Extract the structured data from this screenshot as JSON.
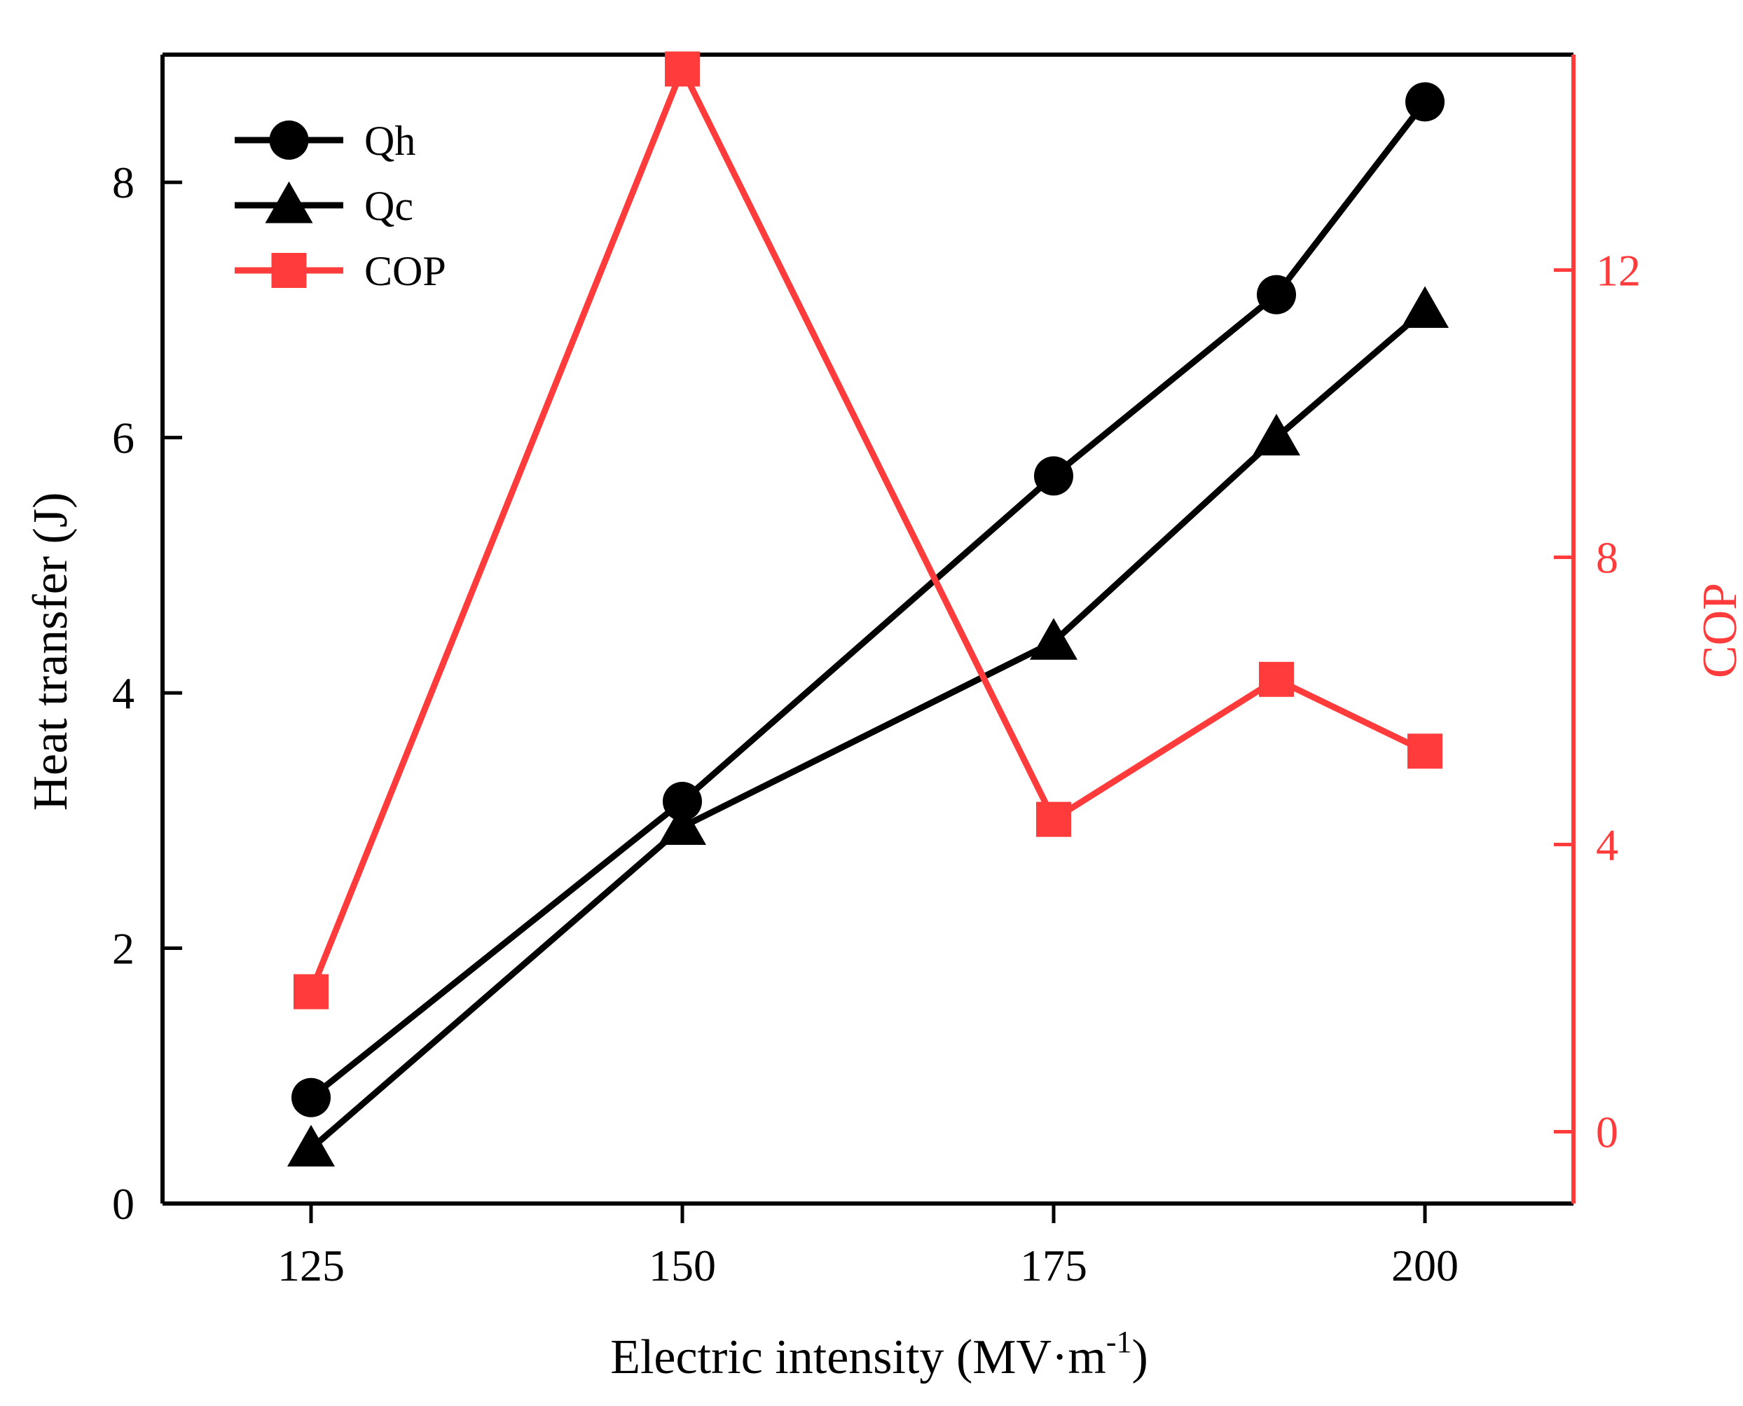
{
  "chart_data": {
    "type": "line",
    "title": "",
    "xlabel": "Electric intensity",
    "xlabel_unit_open": "(MV·m",
    "xlabel_unit_sup": "-1",
    "xlabel_unit_close": ")",
    "ylabel_left": "Heat transfer (J)",
    "ylabel_right": "COP",
    "x": [
      125,
      150,
      175,
      190,
      200
    ],
    "xlim": [
      115,
      210
    ],
    "xticks": [
      125,
      150,
      175,
      200
    ],
    "ylim_left": [
      0,
      9
    ],
    "yticks_left": [
      0,
      2,
      4,
      6,
      8
    ],
    "ylim_right": [
      -1,
      15
    ],
    "yticks_right": [
      0,
      4,
      8,
      12
    ],
    "grid": false,
    "legend_position": "top-left",
    "series": [
      {
        "name": "Qh",
        "axis": "left",
        "marker": "circle",
        "color": "#000000",
        "values": [
          0.83,
          3.15,
          5.7,
          7.12,
          8.63
        ]
      },
      {
        "name": "Qc",
        "axis": "left",
        "marker": "triangle",
        "color": "#000000",
        "values": [
          0.43,
          2.95,
          4.4,
          6.0,
          7.0
        ]
      },
      {
        "name": "COP",
        "axis": "right",
        "marker": "square",
        "color": "#ff3b3b",
        "values": [
          1.95,
          14.8,
          4.35,
          6.3,
          5.3
        ]
      }
    ],
    "colors": {
      "axis_left": "#000000",
      "axis_right": "#ff3b3b"
    }
  }
}
